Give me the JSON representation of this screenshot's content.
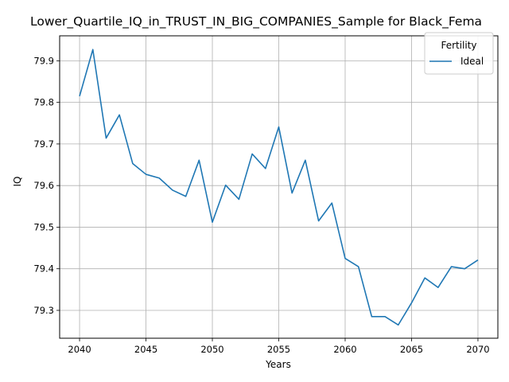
{
  "chart_data": {
    "type": "line",
    "title": "Lower_Quartile_IQ_in_TRUST_IN_BIG_COMPANIES_Sample for Black_Fema",
    "xlabel": "Years",
    "ylabel": "IQ",
    "xlim": [
      2038.5,
      2071.5
    ],
    "ylim": [
      79.233,
      79.96
    ],
    "xticks": [
      2040,
      2045,
      2050,
      2055,
      2060,
      2065,
      2070
    ],
    "yticks": [
      79.3,
      79.4,
      79.5,
      79.6,
      79.7,
      79.8,
      79.9
    ],
    "grid": true,
    "legend": {
      "title": "Fertility",
      "placement": "top-right"
    },
    "series": [
      {
        "name": "Ideal",
        "color": "#1f77b4",
        "x": [
          2040,
          2041,
          2042,
          2043,
          2044,
          2045,
          2046,
          2047,
          2048,
          2049,
          2050,
          2051,
          2052,
          2053,
          2054,
          2055,
          2056,
          2057,
          2058,
          2059,
          2060,
          2061,
          2062,
          2063,
          2064,
          2065,
          2066,
          2067,
          2068,
          2069,
          2070
        ],
        "y": [
          79.815,
          79.927,
          79.714,
          79.77,
          79.653,
          79.627,
          79.618,
          79.589,
          79.574,
          79.661,
          79.512,
          79.601,
          79.567,
          79.676,
          79.641,
          79.741,
          79.582,
          79.661,
          79.515,
          79.558,
          79.425,
          79.405,
          79.285,
          79.285,
          79.265,
          79.318,
          79.378,
          79.355,
          79.405,
          79.4,
          79.421
        ]
      }
    ]
  }
}
